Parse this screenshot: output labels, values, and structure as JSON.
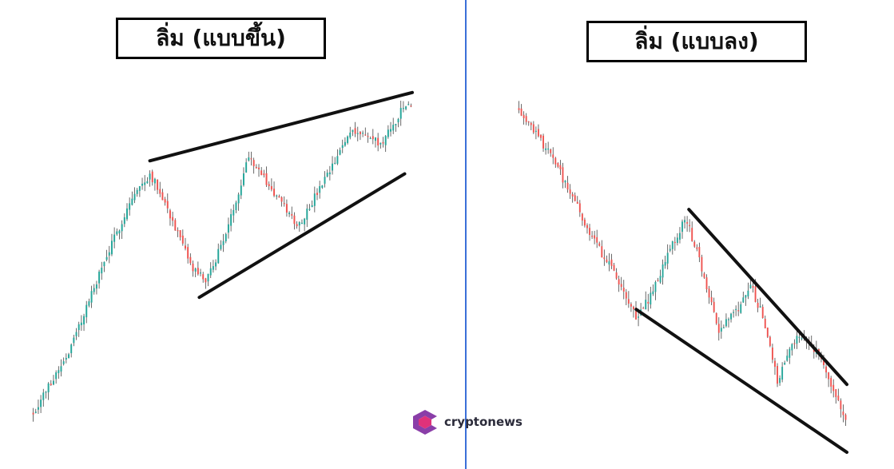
{
  "titles": {
    "left": "ลิ่ม (แบบขึ้น)",
    "right": "ลิ่ม (แบบลง)"
  },
  "logo": {
    "text": "cryptonews"
  },
  "colors": {
    "up": "#26a69a",
    "down": "#ef5350",
    "wick": "#444444",
    "trendline": "#111111",
    "divider": "#3b6fd8",
    "logo_primary": "#8a3ea8",
    "logo_secondary": "#e0327a"
  },
  "chart_data": [
    {
      "type": "candlestick",
      "name": "rising-wedge",
      "title": "ลิ่ม (แบบขึ้น)",
      "xlim": [
        0,
        100
      ],
      "ylim": [
        0,
        100
      ],
      "seed": 7,
      "volatility": 1.6,
      "path": [
        [
          0,
          4
        ],
        [
          10,
          24
        ],
        [
          18,
          48
        ],
        [
          26,
          70
        ],
        [
          31,
          78
        ],
        [
          34,
          72
        ],
        [
          42,
          49
        ],
        [
          46,
          45
        ],
        [
          52,
          63
        ],
        [
          57,
          84
        ],
        [
          63,
          73
        ],
        [
          70,
          62
        ],
        [
          79,
          80
        ],
        [
          84,
          92
        ],
        [
          92,
          87
        ],
        [
          98,
          99
        ]
      ],
      "trendlines": [
        {
          "from": [
            31,
            82
          ],
          "to": [
            100,
            103
          ]
        },
        {
          "from": [
            44,
            40
          ],
          "to": [
            98,
            78
          ]
        }
      ]
    },
    {
      "type": "candlestick",
      "name": "falling-wedge",
      "title": "ลิ่ม (แบบลง)",
      "xlim": [
        0,
        100
      ],
      "ylim": [
        0,
        100
      ],
      "seed": 19,
      "volatility": 1.6,
      "path": [
        [
          0,
          99
        ],
        [
          12,
          82
        ],
        [
          22,
          63
        ],
        [
          32,
          48
        ],
        [
          36,
          40
        ],
        [
          40,
          45
        ],
        [
          46,
          58
        ],
        [
          51,
          68
        ],
        [
          56,
          53
        ],
        [
          61,
          36
        ],
        [
          65,
          40
        ],
        [
          71,
          48
        ],
        [
          74,
          41
        ],
        [
          79,
          22
        ],
        [
          83,
          33
        ],
        [
          87,
          34
        ],
        [
          91,
          30
        ],
        [
          96,
          20
        ],
        [
          100,
          9
        ]
      ],
      "trendlines": [
        {
          "from": [
            52,
            70
          ],
          "to": [
            100,
            21
          ]
        },
        {
          "from": [
            36,
            42
          ],
          "to": [
            100,
            2
          ]
        }
      ]
    }
  ]
}
